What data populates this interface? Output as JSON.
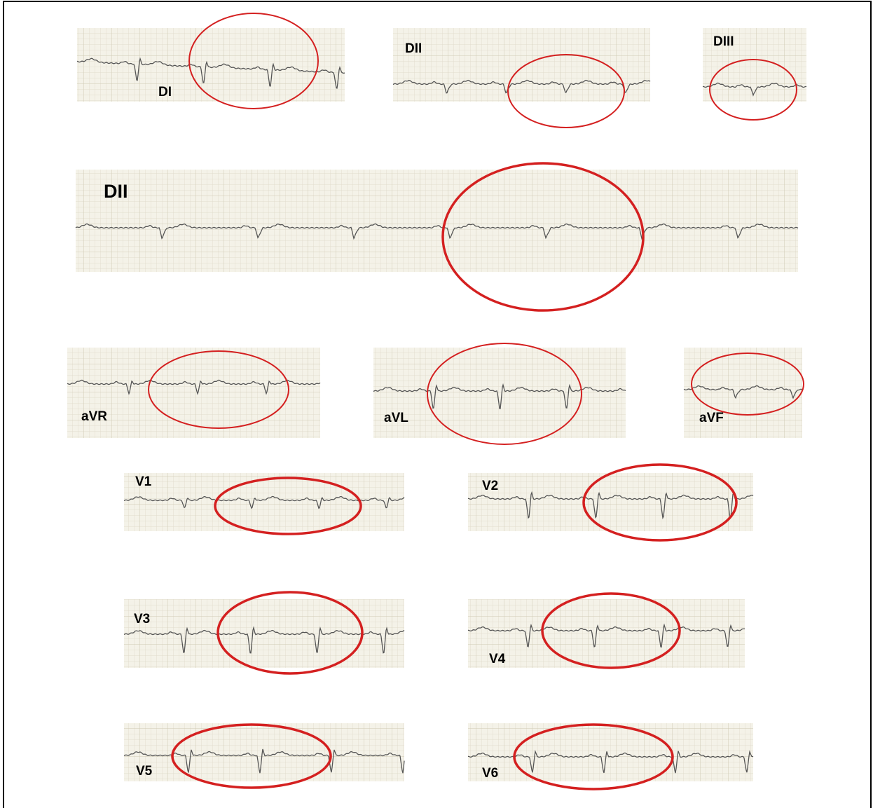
{
  "strips": [
    {
      "label": "DI"
    },
    {
      "label": "DII"
    },
    {
      "label": "DIII"
    },
    {
      "label": "DII"
    },
    {
      "label": "aVR"
    },
    {
      "label": "aVL"
    },
    {
      "label": "aVF"
    },
    {
      "label": "V1"
    },
    {
      "label": "V2"
    },
    {
      "label": "V3"
    },
    {
      "label": "V4"
    },
    {
      "label": "V5"
    },
    {
      "label": "V6"
    }
  ]
}
